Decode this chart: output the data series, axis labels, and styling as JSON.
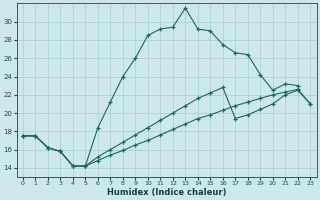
{
  "xlabel": "Humidex (Indice chaleur)",
  "bg_color": "#cce8ea",
  "grid_color": "#aacccc",
  "line_color": "#1a6a5e",
  "xlim": [
    -0.5,
    23.5
  ],
  "ylim": [
    13,
    32
  ],
  "xticks": [
    0,
    1,
    2,
    3,
    4,
    5,
    6,
    7,
    8,
    9,
    10,
    11,
    12,
    13,
    14,
    15,
    16,
    17,
    18,
    19,
    20,
    21,
    22,
    23
  ],
  "yticks": [
    14,
    16,
    18,
    20,
    22,
    24,
    26,
    28,
    30
  ],
  "curve1_x": [
    0,
    1,
    2,
    3,
    4,
    5,
    6,
    7,
    8,
    9,
    10,
    11,
    12,
    13,
    14,
    15,
    16,
    17,
    18,
    19,
    20,
    21,
    22
  ],
  "curve1_y": [
    17.5,
    17.5,
    16.2,
    15.8,
    14.2,
    14.2,
    18.4,
    21.2,
    24.0,
    26.0,
    28.5,
    29.2,
    29.4,
    31.5,
    29.2,
    29.0,
    27.5,
    26.6,
    26.4,
    24.2,
    22.5,
    23.2,
    23.0
  ],
  "curve2_x": [
    0,
    1,
    2,
    3,
    4,
    5,
    6,
    7,
    8,
    9,
    10,
    11,
    12,
    13,
    14,
    15,
    16,
    17,
    18,
    19,
    20,
    21,
    22,
    23
  ],
  "curve2_y": [
    17.5,
    17.5,
    16.2,
    15.8,
    14.2,
    14.2,
    15.2,
    16.0,
    16.8,
    17.6,
    18.4,
    19.2,
    20.0,
    20.8,
    21.6,
    22.2,
    22.8,
    19.4,
    19.8,
    20.4,
    21.0,
    22.0,
    22.5,
    21.0
  ],
  "curve3_x": [
    0,
    1,
    2,
    3,
    4,
    5,
    6,
    7,
    8,
    9,
    10,
    11,
    12,
    13,
    14,
    15,
    16,
    17,
    18,
    19,
    20,
    21,
    22,
    23
  ],
  "curve3_y": [
    17.5,
    17.5,
    16.2,
    15.8,
    14.2,
    14.2,
    14.8,
    15.4,
    15.9,
    16.5,
    17.0,
    17.6,
    18.2,
    18.8,
    19.4,
    19.8,
    20.3,
    20.8,
    21.2,
    21.6,
    22.0,
    22.3,
    22.6,
    21.0
  ]
}
